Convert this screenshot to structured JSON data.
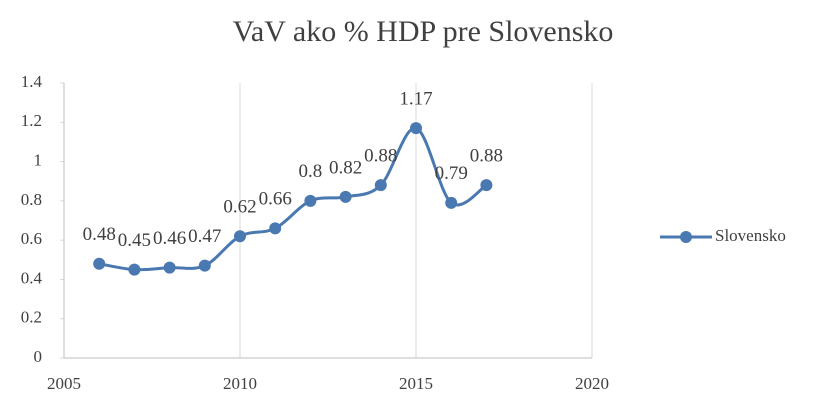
{
  "chart_data": {
    "type": "line",
    "title": "VaV ako % HDP pre Slovensko",
    "x": [
      2006,
      2007,
      2008,
      2009,
      2010,
      2011,
      2012,
      2013,
      2014,
      2015,
      2016,
      2017
    ],
    "series": [
      {
        "name": "Slovensko",
        "color": "#4a78b0",
        "values": [
          0.48,
          0.45,
          0.46,
          0.47,
          0.62,
          0.66,
          0.8,
          0.82,
          0.88,
          1.17,
          0.79,
          0.88
        ]
      }
    ],
    "xlim": [
      2005,
      2020
    ],
    "xticks": [
      2005,
      2010,
      2015,
      2020
    ],
    "ylim": [
      0,
      1.4
    ],
    "yticks": [
      0,
      0.2,
      0.4,
      0.6,
      0.8,
      1,
      1.2,
      1.4
    ],
    "grid": "x",
    "smooth": true,
    "data_labels": true,
    "legend": "right"
  }
}
